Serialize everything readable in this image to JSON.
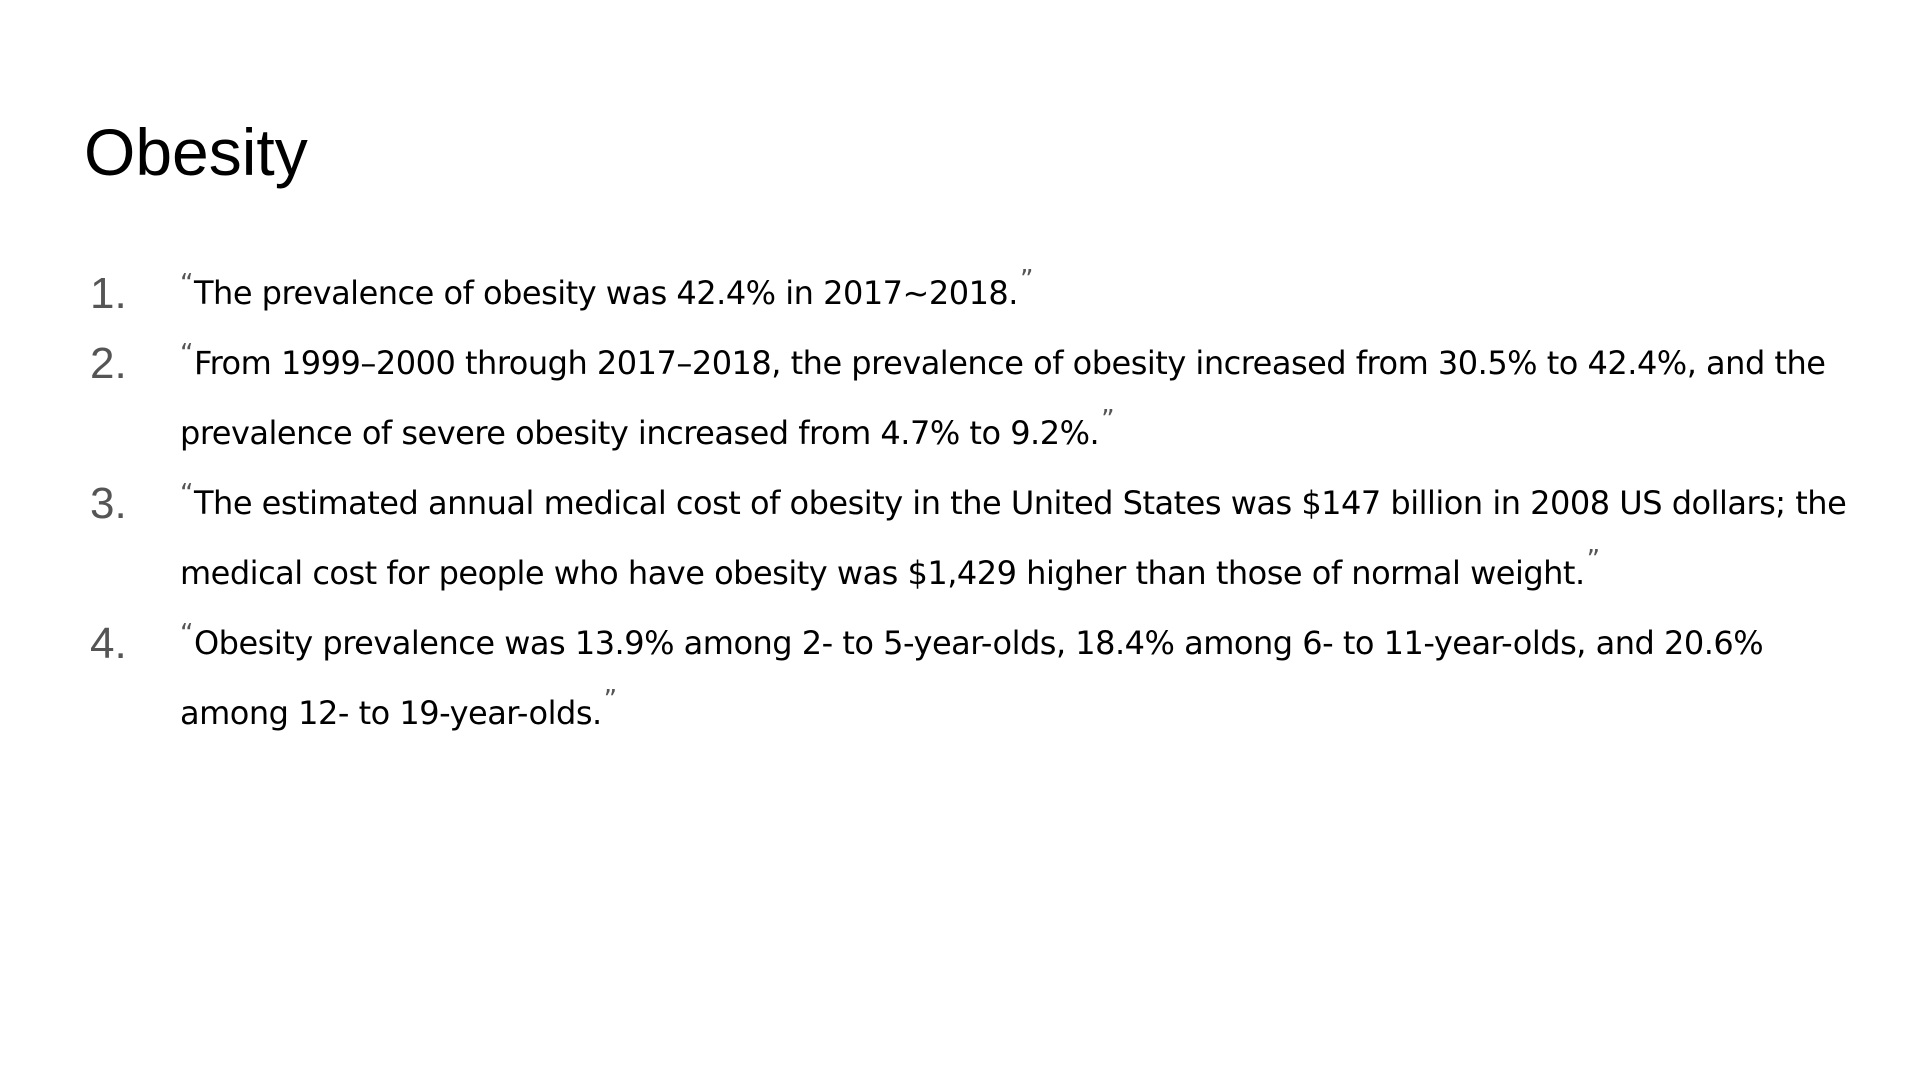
{
  "slide": {
    "title": "Obesity",
    "items": [
      {
        "number": "1.",
        "open_quote": "“",
        "text": "The prevalence of obesity was 42.4% in 2017~2018.",
        "close_quote": "”"
      },
      {
        "number": "2.",
        "open_quote": "“",
        "text": "From 1999–2000 through 2017–2018, the prevalence of obesity increased from 30.5% to 42.4%, and the prevalence of severe obesity increased from 4.7% to 9.2%.",
        "close_quote": "”"
      },
      {
        "number": "3.",
        "open_quote": "“",
        "text": "The estimated annual medical cost of obesity in the United States was $147 billion in 2008 US dollars; the medical cost for people who have obesity was $1,429 higher than those of normal weight.",
        "close_quote": "”"
      },
      {
        "number": "4.",
        "open_quote": "“",
        "text": "Obesity prevalence was 13.9% among 2- to 5-year-olds, 18.4% among 6- to 11-year-olds, and 20.6% among 12- to 19-year-olds.",
        "close_quote": "”"
      }
    ]
  }
}
